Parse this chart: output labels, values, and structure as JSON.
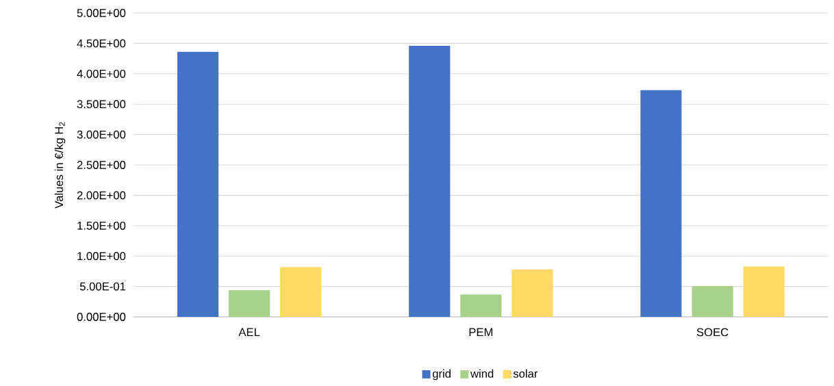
{
  "chart_data": {
    "type": "bar",
    "ylabel": "Values in €/kg H$_{2}$",
    "categories": [
      "AEL",
      "PEM",
      "SOEC"
    ],
    "series": [
      {
        "name": "grid",
        "color": "#4472c4",
        "values": [
          4.36,
          4.46,
          3.73
        ]
      },
      {
        "name": "wind",
        "color": "#a9d18e",
        "values": [
          0.44,
          0.37,
          0.51
        ]
      },
      {
        "name": "solar",
        "color": "#ffd966",
        "values": [
          0.82,
          0.78,
          0.83
        ]
      }
    ],
    "ylim": [
      0,
      5
    ],
    "yticks": [
      {
        "value": 0,
        "label": "0.00E+00"
      },
      {
        "value": 0.5,
        "label": "5.00E-01"
      },
      {
        "value": 1,
        "label": "1.00E+00"
      },
      {
        "value": 1.5,
        "label": "1.50E+00"
      },
      {
        "value": 2,
        "label": "2.00E+00"
      },
      {
        "value": 2.5,
        "label": "2.50E+00"
      },
      {
        "value": 3,
        "label": "3.00E+00"
      },
      {
        "value": 3.5,
        "label": "3.50E+00"
      },
      {
        "value": 4,
        "label": "4.00E+00"
      },
      {
        "value": 4.5,
        "label": "4.50E+00"
      },
      {
        "value": 5,
        "label": "5.00E+00"
      }
    ],
    "grid": "y",
    "legend": "bottom"
  }
}
